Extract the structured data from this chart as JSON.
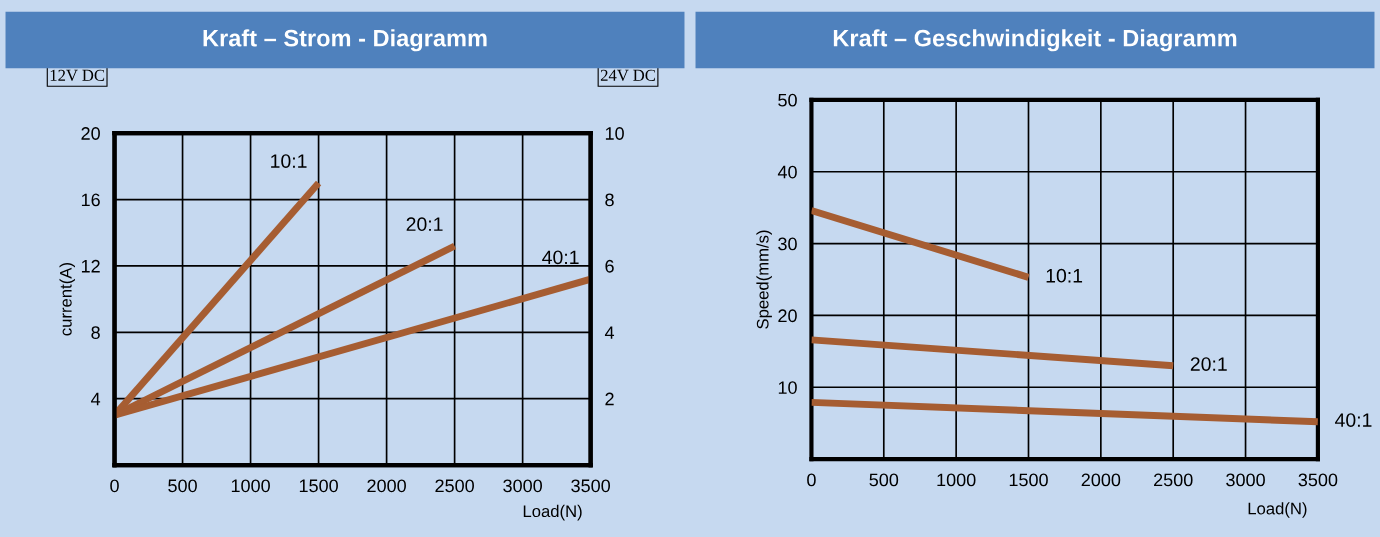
{
  "chart_data": [
    {
      "type": "line",
      "title": "Kraft – Strom - Diagramm",
      "xlabel": "Load(N)",
      "ylabel": "current(A)",
      "annotations": [
        "12V DC",
        "24V DC"
      ],
      "xlim": [
        0,
        3500
      ],
      "xticks": [
        0,
        500,
        1000,
        1500,
        2000,
        2500,
        3000,
        3500
      ],
      "ylim": [
        0,
        20
      ],
      "yticks": [
        {
          "value": 0,
          "label": null
        },
        4,
        8,
        12,
        16,
        20
      ],
      "y2lim": [
        0,
        10
      ],
      "y2ticks": [
        {
          "value": 0,
          "label": null
        },
        2,
        4,
        6,
        8,
        10
      ],
      "grid": true,
      "legend": false,
      "marker": "none",
      "line_style": "solid",
      "series": [
        {
          "name": "10:1",
          "color": "#a65d32",
          "x": [
            0,
            1500
          ],
          "values": [
            3,
            17
          ]
        },
        {
          "name": "20:1",
          "color": "#a65d32",
          "x": [
            0,
            2500
          ],
          "values": [
            3,
            13.2
          ]
        },
        {
          "name": "40:1",
          "color": "#a65d32",
          "x": [
            0,
            3500
          ],
          "values": [
            3,
            11.2
          ]
        }
      ]
    },
    {
      "type": "line",
      "title": "Kraft – Geschwindigkeit - Diagramm",
      "xlabel": "Load(N)",
      "ylabel": "Speed(mm/s)",
      "xlim": [
        0,
        3500
      ],
      "xticks": [
        0,
        500,
        1000,
        1500,
        2000,
        2500,
        3000,
        3500
      ],
      "ylim": [
        0,
        50
      ],
      "yticks": [
        {
          "value": 0,
          "label": null
        },
        10,
        20,
        30,
        40,
        50
      ],
      "grid": true,
      "legend": false,
      "marker": "none",
      "line_style": "solid",
      "series": [
        {
          "name": "10:1",
          "color": "#a65d32",
          "x": [
            0,
            1500
          ],
          "values": [
            34.6,
            25.3
          ]
        },
        {
          "name": "20:1",
          "color": "#a65d32",
          "x": [
            0,
            2500
          ],
          "values": [
            16.6,
            13
          ]
        },
        {
          "name": "40:1",
          "color": "#a65d32",
          "x": [
            0,
            3500
          ],
          "values": [
            7.9,
            5.2
          ]
        }
      ]
    }
  ]
}
